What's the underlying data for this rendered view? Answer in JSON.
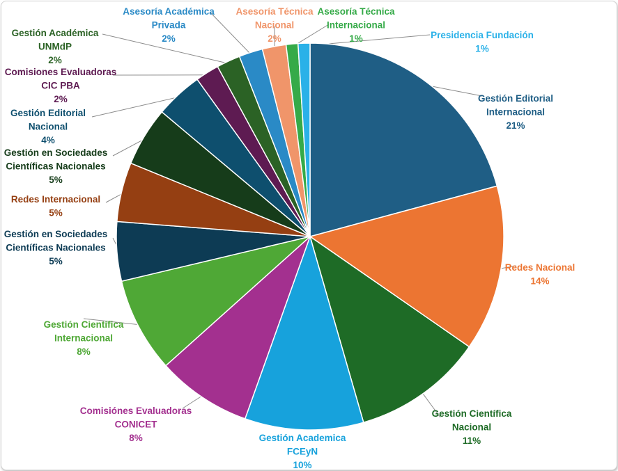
{
  "chart_data": {
    "type": "pie",
    "title": "",
    "unit": "%",
    "slices": [
      {
        "lines": [
          "Gestión Editorial",
          "Internacional"
        ],
        "value": 21,
        "label": "21%",
        "color": "#1f5e85"
      },
      {
        "lines": [
          "Redes Nacional"
        ],
        "value": 14,
        "label": "14%",
        "color": "#ec7532"
      },
      {
        "lines": [
          "Gestión Científica",
          "Nacional"
        ],
        "value": 11,
        "label": "11%",
        "color": "#1e6b26"
      },
      {
        "lines": [
          "Gestión Academica",
          "FCEyN"
        ],
        "value": 10,
        "label": "10%",
        "color": "#17a2dc"
      },
      {
        "lines": [
          "Comisiónes Evaluadoras",
          "CONICET"
        ],
        "value": 8,
        "label": "8%",
        "color": "#a3308f"
      },
      {
        "lines": [
          "Gestión Científica",
          "Internacional"
        ],
        "value": 8,
        "label": "8%",
        "color": "#4fa836"
      },
      {
        "lines": [
          "Gestión en Sociedades",
          "Científicas Nacionales"
        ],
        "value": 5,
        "label": "5%",
        "color": "#0d3b54"
      },
      {
        "lines": [
          "Redes Internacional"
        ],
        "value": 5,
        "label": "5%",
        "color": "#953f12"
      },
      {
        "lines": [
          "Gestión en Sociedades",
          "Científicas Nacionales"
        ],
        "value": 5,
        "label": "5%",
        "color": "#163c1a"
      },
      {
        "lines": [
          "Gestión Editorial",
          "Nacional"
        ],
        "value": 4,
        "label": "4%",
        "color": "#0e4f6e"
      },
      {
        "lines": [
          "Comisiones Evaluadoras",
          "CIC PBA"
        ],
        "value": 2,
        "label": "2%",
        "color": "#5e1b52"
      },
      {
        "lines": [
          "Gestión Académica",
          "UNMdP"
        ],
        "value": 2,
        "label": "2%",
        "color": "#2b6225"
      },
      {
        "lines": [
          "Asesoría Académica",
          "Privada"
        ],
        "value": 2,
        "label": "2%",
        "color": "#2a8ac6"
      },
      {
        "lines": [
          "Asesoría Técnica",
          "Nacional"
        ],
        "value": 2,
        "label": "2%",
        "color": "#f0956a"
      },
      {
        "lines": [
          "Asesoría Técnica",
          "Internacional"
        ],
        "value": 1,
        "label": "1%",
        "color": "#35aa48"
      },
      {
        "lines": [
          "Presidencia Fundación"
        ],
        "value": 1,
        "label": "1%",
        "color": "#2ab1e8"
      }
    ],
    "legend": "none",
    "labels": "outside-with-leader-lines"
  }
}
